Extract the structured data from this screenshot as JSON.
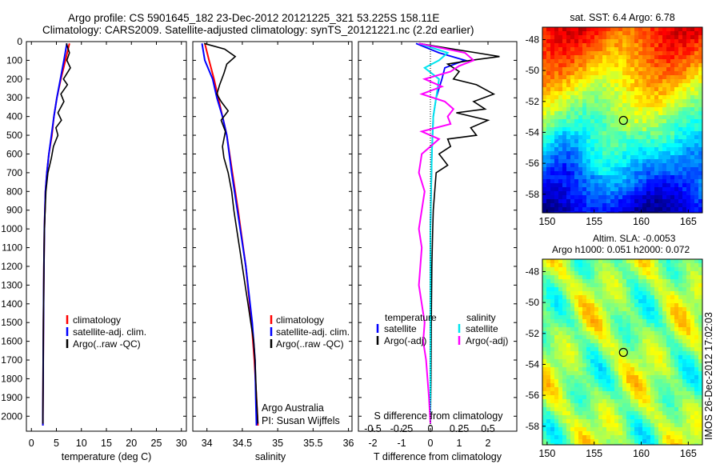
{
  "header": {
    "line1": "Argo profile: CS 5901645_182 23-Dec-2012 20121225_321 53.225S 158.11E",
    "line2": "Climatology: CARS2009. Satellite-adjusted climatology: synTS_20121221.nc (2.2d earlier)"
  },
  "footer_text": "IMOS 26-Dec-2012 17:02:03",
  "colors": {
    "clim": "#ff0000",
    "sat": "#0000ff",
    "argo": "#000000",
    "sal_sat": "#00e5ee",
    "sal_argo": "#ff00ff"
  },
  "chart_data": [
    {
      "type": "line",
      "title": "",
      "xlabel": "temperature (deg C)",
      "ylabel": "",
      "xlim": [
        -1,
        31
      ],
      "ylim": [
        2080,
        0
      ],
      "x_ticks": [
        0,
        5,
        10,
        15,
        20,
        25,
        30
      ],
      "y_ticks": [
        0,
        100,
        200,
        300,
        400,
        500,
        600,
        700,
        800,
        900,
        1000,
        1100,
        1200,
        1300,
        1400,
        1500,
        1600,
        1700,
        1800,
        1900,
        2000
      ],
      "legend": [
        "climatology",
        "satellite-adj. clim.",
        "Argo(..raw -QC)"
      ],
      "series": [
        {
          "name": "climatology",
          "depth": [
            10,
            100,
            200,
            300,
            400,
            500,
            600,
            700,
            800,
            1000,
            1200,
            1500,
            2000,
            2050
          ],
          "values": [
            7.6,
            6.8,
            5.9,
            5.1,
            4.5,
            4.1,
            3.5,
            3.1,
            2.8,
            2.6,
            2.5,
            2.4,
            2.3,
            2.3
          ]
        },
        {
          "name": "satellite-adj. clim.",
          "depth": [
            10,
            100,
            200,
            300,
            400,
            500,
            600,
            700,
            800,
            1000,
            1200,
            1500,
            2000,
            2050
          ],
          "values": [
            7.1,
            6.5,
            5.8,
            5.1,
            4.5,
            4.0,
            3.5,
            3.1,
            2.8,
            2.6,
            2.5,
            2.4,
            2.3,
            2.3
          ]
        },
        {
          "name": "Argo(..raw -QC)",
          "depth": [
            10,
            60,
            100,
            140,
            200,
            230,
            280,
            320,
            380,
            420,
            460,
            500,
            560,
            620,
            700,
            800,
            1000,
            1200,
            1500,
            2000,
            2040
          ],
          "values": [
            7.0,
            7.6,
            7.1,
            7.8,
            6.4,
            7.2,
            5.9,
            6.5,
            5.3,
            6.0,
            4.9,
            5.3,
            4.4,
            4.0,
            3.3,
            2.9,
            2.6,
            2.5,
            2.4,
            2.3,
            2.3
          ]
        }
      ]
    },
    {
      "type": "line",
      "title": "",
      "xlabel": "salinity",
      "ylabel": "",
      "xlim": [
        33.8,
        36.05
      ],
      "ylim": [
        2080,
        0
      ],
      "x_ticks": [
        34,
        34.5,
        35,
        35.5,
        36
      ],
      "legend": [
        "climatology",
        "satellite-adj. clim.",
        "Argo(..raw -QC)"
      ],
      "annotations": [
        "Argo Australia",
        "PI: Susan Wijffels"
      ],
      "series": [
        {
          "name": "climatology",
          "depth": [
            10,
            100,
            200,
            300,
            400,
            500,
            700,
            900,
            1200,
            1500,
            1700,
            1900,
            2050
          ],
          "values": [
            33.97,
            34.03,
            34.1,
            34.16,
            34.22,
            34.28,
            34.36,
            34.44,
            34.55,
            34.63,
            34.67,
            34.7,
            34.72
          ]
        },
        {
          "name": "satellite-adj. clim.",
          "depth": [
            10,
            100,
            200,
            300,
            400,
            500,
            700,
            900,
            1200,
            1500,
            1700,
            1900,
            2050
          ],
          "values": [
            33.93,
            33.97,
            34.08,
            34.14,
            34.22,
            34.28,
            34.35,
            34.43,
            34.55,
            34.64,
            34.68,
            34.69,
            34.7
          ]
        },
        {
          "name": "Argo(..raw -QC)",
          "depth": [
            10,
            40,
            80,
            120,
            170,
            230,
            280,
            320,
            370,
            420,
            480,
            560,
            620,
            700,
            800,
            900,
            1000,
            1100,
            1200,
            1300,
            1400,
            1500,
            1600,
            1700,
            1800,
            1900,
            2040
          ],
          "values": [
            33.96,
            34.25,
            34.4,
            34.28,
            34.24,
            34.18,
            34.14,
            34.2,
            34.3,
            34.2,
            34.26,
            34.22,
            34.24,
            34.3,
            34.35,
            34.38,
            34.42,
            34.46,
            34.5,
            34.54,
            34.58,
            34.62,
            34.66,
            34.68,
            34.69,
            34.7,
            34.72
          ]
        }
      ]
    },
    {
      "type": "line",
      "title": "",
      "xlabel": "T difference from climatology",
      "xlabel_top": "S difference from climatology",
      "ylabel": "",
      "xlim": [
        -2.5,
        3.0
      ],
      "ylim": [
        2080,
        0
      ],
      "x_ticks_T": [
        -2,
        -1,
        0,
        1,
        2
      ],
      "x_ticks_S": [
        "-0.5",
        "-0.25",
        "0",
        "0.25",
        "0.5"
      ],
      "legend_groups": [
        "temperature",
        "salinity"
      ],
      "legend": [
        "satellite",
        "Argo(-adj)",
        "satellite",
        "Argo(-adj)"
      ],
      "series": [
        {
          "name": "satellite",
          "group": "temperature",
          "depth": [
            10,
            60,
            100,
            140,
            200,
            300,
            400,
            600,
            1000,
            1500,
            2000,
            2040
          ],
          "values": [
            -0.5,
            0.3,
            1.2,
            0.5,
            0.4,
            0.2,
            0.1,
            0.05,
            0.0,
            0.0,
            0.0,
            0.0
          ]
        },
        {
          "name": "Argo(-adj)",
          "group": "temperature",
          "depth": [
            10,
            40,
            60,
            80,
            100,
            120,
            160,
            200,
            230,
            280,
            320,
            360,
            380,
            420,
            460,
            500,
            520,
            560,
            600,
            660,
            700,
            800,
            900,
            1000,
            1200,
            1500,
            1800,
            2040
          ],
          "values": [
            -0.4,
            0.8,
            1.6,
            2.4,
            1.4,
            0.6,
            1.0,
            0.8,
            1.6,
            2.2,
            1.5,
            1.9,
            0.9,
            2.0,
            1.4,
            1.6,
            0.6,
            0.7,
            0.3,
            0.6,
            0.2,
            0.15,
            0.1,
            0.08,
            0.05,
            0.03,
            0.02,
            0.0
          ]
        },
        {
          "name": "satellite",
          "group": "salinity",
          "depth": [
            10,
            60,
            100,
            140,
            200,
            300,
            400,
            600,
            1000,
            1500,
            2000,
            2040
          ],
          "values": [
            -0.4,
            0.6,
            0.3,
            -0.2,
            0.3,
            0.2,
            0.1,
            0.05,
            0.0,
            0.0,
            0.0,
            0.0
          ]
        },
        {
          "name": "Argo(-adj)",
          "group": "salinity",
          "depth": [
            10,
            60,
            100,
            130,
            160,
            200,
            240,
            280,
            320,
            360,
            400,
            440,
            480,
            520,
            600,
            700,
            800,
            900,
            1000,
            1100,
            1200,
            1300,
            1400,
            1500,
            1600,
            1700,
            1800,
            1900,
            2040
          ],
          "values": [
            -0.4,
            1.2,
            1.5,
            1.0,
            0.7,
            -0.2,
            0.4,
            -0.3,
            0.5,
            0.8,
            0.6,
            0.7,
            -0.3,
            0.3,
            -0.3,
            -0.4,
            -0.2,
            -0.3,
            -0.4,
            -0.3,
            -0.35,
            -0.4,
            -0.3,
            -0.2,
            -0.25,
            -0.15,
            -0.1,
            -0.05,
            0.0
          ]
        }
      ]
    },
    {
      "type": "heatmap",
      "title": "sat. SST: 6.4 Argo: 6.78",
      "xlim": [
        149.5,
        166.5
      ],
      "ylim": [
        -59.2,
        -47.2
      ],
      "x_ticks": [
        150,
        155,
        160,
        165
      ],
      "y_ticks": [
        -48,
        -50,
        -52,
        -54,
        -56,
        -58
      ],
      "marker": {
        "lon": 158.11,
        "lat": -53.225
      }
    },
    {
      "type": "heatmap",
      "title": "Altim. SLA: -0.0053",
      "subtitle": "Argo h1000: 0.051 h2000: 0.072",
      "xlim": [
        149.5,
        166.5
      ],
      "ylim": [
        -59.2,
        -47.2
      ],
      "x_ticks": [
        150,
        155,
        160,
        165
      ],
      "y_ticks": [
        -48,
        -50,
        -52,
        -54,
        -56,
        -58
      ],
      "marker": {
        "lon": 158.11,
        "lat": -53.225
      }
    }
  ]
}
